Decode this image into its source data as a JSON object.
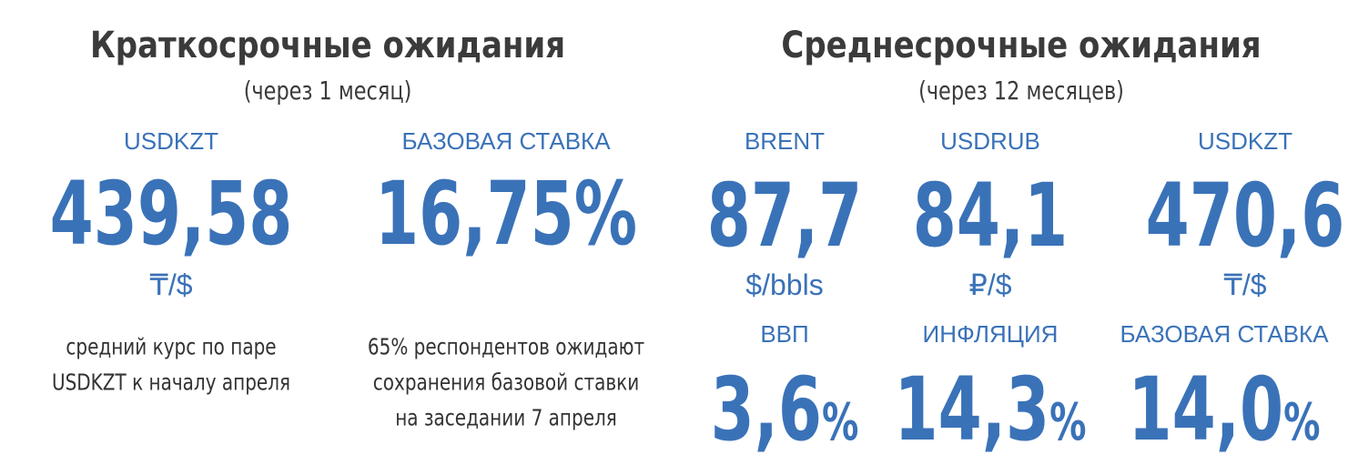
{
  "left": {
    "title": "Краткосрочные ожидания",
    "subtitle": "(через 1 месяц)",
    "items": [
      {
        "label": "USDKZT",
        "value": "439,58",
        "unit": "₸/$",
        "note": [
          "средний курс по паре",
          "USDKZT к началу апреля"
        ]
      },
      {
        "label": "БАЗОВАЯ СТАВКА",
        "value": "16,75%",
        "note": [
          "65% респондентов ожидают",
          "сохранения базовой ставки",
          "на заседании 7 апреля"
        ]
      }
    ]
  },
  "right": {
    "title": "Среднесрочные ожидания",
    "subtitle": "(через 12 месяцев)",
    "items": [
      {
        "label": "BRENT",
        "value": "87,7",
        "unit": "$/bbls"
      },
      {
        "label": "USDRUB",
        "value": "84,1",
        "unit": "₽/$"
      },
      {
        "label": "USDKZT",
        "value": "470,6",
        "unit": "₸/$"
      },
      {
        "label": "ВВП",
        "value": "3,6",
        "unit": "%"
      },
      {
        "label": "ИНФЛЯЦИЯ",
        "value": "14,3",
        "unit": "%"
      },
      {
        "label": "БАЗОВАЯ СТАВКА",
        "value": "14,0",
        "unit": "%"
      }
    ]
  }
}
